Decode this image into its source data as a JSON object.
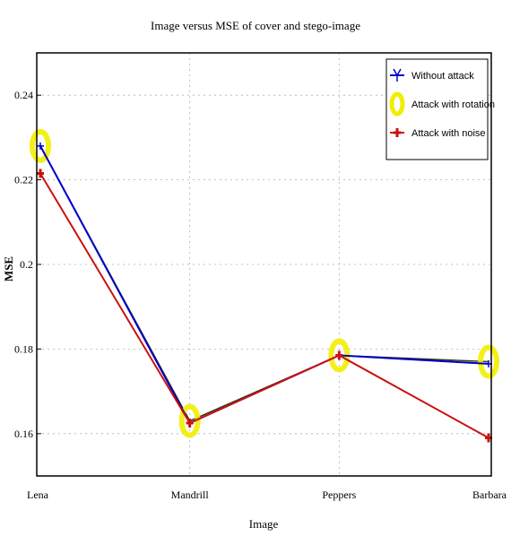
{
  "chart_data": {
    "type": "line",
    "title": "Image versus MSE of cover and stego-image",
    "xlabel": "Image",
    "ylabel": "MSE",
    "categories": [
      "Lena",
      "Mandrill",
      "Peppers",
      "Barbara"
    ],
    "ylim": [
      0.15,
      0.25
    ],
    "yticks": [
      0.16,
      0.18,
      0.2,
      0.22,
      0.24
    ],
    "ytick_labels": [
      "0.16",
      "0.18",
      "0.2",
      "0.22",
      "0.24"
    ],
    "grid": true,
    "legend_position": "top-right",
    "series": [
      {
        "name": "Without attack",
        "values": [
          0.228,
          0.1625,
          0.1785,
          0.1765
        ],
        "color": "#0000cc",
        "marker": "star"
      },
      {
        "name": "Attack with rotation",
        "values": [
          0.228,
          0.163,
          0.1785,
          0.177
        ],
        "color": "#f2ee00",
        "marker": "circle"
      },
      {
        "name": "Attack with noise",
        "values": [
          0.2215,
          0.1625,
          0.1785,
          0.159
        ],
        "color": "#cc1111",
        "marker": "plus"
      }
    ]
  }
}
